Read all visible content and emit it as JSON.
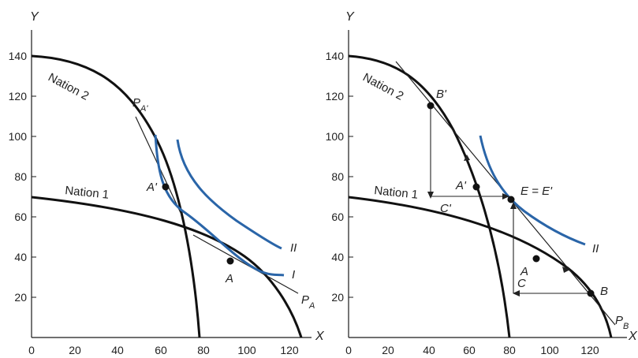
{
  "panels": [
    {
      "id": "left",
      "x_axis_label": "X",
      "y_axis_label": "Y",
      "x_ticks": [
        "0",
        "20",
        "40",
        "60",
        "80",
        "100",
        "120"
      ],
      "y_ticks": [
        "20",
        "40",
        "60",
        "80",
        "100",
        "120",
        "140"
      ],
      "curve_labels": {
        "nation2": "Nation 2",
        "nation1": "Nation 1",
        "indiff_I": "I",
        "indiff_II": "II"
      },
      "point_labels": {
        "A_prime": "A'",
        "A": "A"
      },
      "price_labels": {
        "pa_prime_base": "P",
        "pa_prime_sub": "A'",
        "pa_base": "P",
        "pa_sub": "A"
      }
    },
    {
      "id": "right",
      "x_axis_label": "X",
      "y_axis_label": "Y",
      "x_ticks": [
        "0",
        "20",
        "40",
        "60",
        "80",
        "100",
        "120"
      ],
      "y_ticks": [
        "20",
        "40",
        "60",
        "80",
        "100",
        "120",
        "140"
      ],
      "curve_labels": {
        "nation2": "Nation 2",
        "nation1": "Nation 1",
        "indiff_II": "II"
      },
      "point_labels": {
        "B_prime": "B'",
        "A_prime": "A'",
        "C_prime": "C'",
        "E": "E = E'",
        "A": "A",
        "C": "C",
        "B": "B"
      },
      "price_labels": {
        "pb_base": "P",
        "pb_sub": "B"
      }
    }
  ],
  "chart_data": [
    {
      "type": "line",
      "panel": "left",
      "xlim": [
        0,
        140
      ],
      "ylim": [
        0,
        150
      ],
      "series": [
        {
          "name": "Nation 2",
          "x": [
            0,
            20,
            40,
            60,
            70,
            80,
            85
          ],
          "y": [
            140,
            137,
            125,
            100,
            75,
            35,
            0
          ]
        },
        {
          "name": "Nation 1",
          "x": [
            0,
            40,
            80,
            100,
            120,
            140
          ],
          "y": [
            70,
            63,
            50,
            38,
            23,
            0
          ]
        },
        {
          "name": "I",
          "x": [
            62,
            65,
            70,
            80,
            100,
            120,
            130
          ],
          "y": [
            100,
            88,
            72,
            55,
            40,
            33,
            32
          ]
        },
        {
          "name": "II",
          "x": [
            75,
            80,
            90,
            100,
            110,
            120,
            130
          ],
          "y": [
            98,
            86,
            72,
            62,
            54,
            48,
            44
          ]
        }
      ],
      "points": [
        {
          "label": "A'",
          "x": 68,
          "y": 75
        },
        {
          "label": "A",
          "x": 101,
          "y": 38
        }
      ]
    },
    {
      "type": "line",
      "panel": "right",
      "xlim": [
        0,
        140
      ],
      "ylim": [
        0,
        150
      ],
      "series": [
        {
          "name": "Nation 2",
          "x": [
            0,
            20,
            40,
            60,
            70,
            80,
            85
          ],
          "y": [
            140,
            137,
            125,
            100,
            75,
            35,
            0
          ]
        },
        {
          "name": "Nation 1",
          "x": [
            0,
            40,
            80,
            100,
            120,
            140
          ],
          "y": [
            70,
            63,
            50,
            38,
            23,
            0
          ]
        },
        {
          "name": "II",
          "x": [
            65,
            70,
            80,
            86,
            100,
            115,
            125
          ],
          "y": [
            100,
            88,
            75,
            69,
            58,
            50,
            46
          ]
        }
      ],
      "points": [
        {
          "label": "B'",
          "x": 43,
          "y": 116
        },
        {
          "label": "A'",
          "x": 68,
          "y": 75
        },
        {
          "label": "E = E'",
          "x": 86,
          "y": 69
        },
        {
          "label": "A",
          "x": 98,
          "y": 39
        },
        {
          "label": "B",
          "x": 126,
          "y": 22
        },
        {
          "label": "C'",
          "x": 43,
          "y": 69
        },
        {
          "label": "C",
          "x": 86,
          "y": 22
        }
      ]
    }
  ]
}
